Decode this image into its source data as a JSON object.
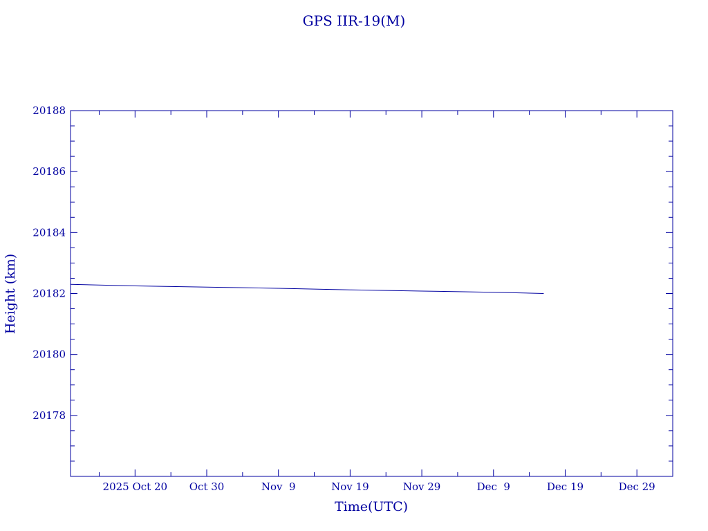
{
  "chart_data": {
    "type": "line",
    "title": "GPS IIR-19(M)",
    "xlabel": "Time(UTC)",
    "ylabel": "Height (km)",
    "x_tick_labels": [
      {
        "date": "2025-10-20",
        "label": "2025 Oct 20"
      },
      {
        "date": "2025-10-30",
        "label": "Oct 30"
      },
      {
        "date": "2025-11-09",
        "label": "Nov  9"
      },
      {
        "date": "2025-11-19",
        "label": "Nov 19"
      },
      {
        "date": "2025-11-29",
        "label": "Nov 29"
      },
      {
        "date": "2025-12-09",
        "label": "Dec  9"
      },
      {
        "date": "2025-12-19",
        "label": "Dec 19"
      },
      {
        "date": "2025-12-29",
        "label": "Dec 29"
      }
    ],
    "y_ticks": [
      20178,
      20180,
      20182,
      20184,
      20186,
      20188
    ],
    "xlim": [
      "2025-10-11",
      "2026-01-03"
    ],
    "ylim": [
      20176,
      20188
    ],
    "grid": false,
    "series": [
      {
        "x": [
          "2025-10-11",
          "2025-10-20",
          "2025-10-30",
          "2025-11-09",
          "2025-11-19",
          "2025-11-29",
          "2025-12-09",
          "2025-12-16"
        ],
        "values": [
          20182.3,
          20182.25,
          20182.21,
          20182.17,
          20182.12,
          20182.08,
          20182.04,
          20182.0
        ]
      }
    ]
  },
  "colors": {
    "ink": "#0000a0",
    "background": "#ffffff"
  }
}
